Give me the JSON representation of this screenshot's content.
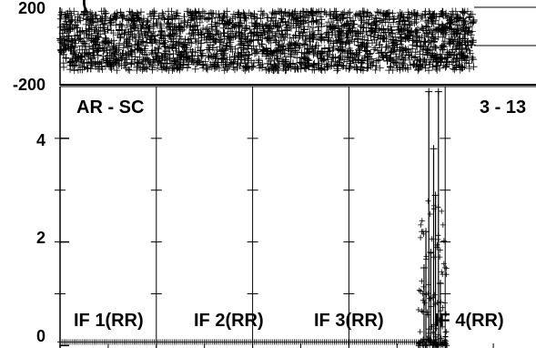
{
  "chart_data": {
    "type": "scatter",
    "top_panel": {
      "title_fragment": "(",
      "y_ticks": [
        {
          "label": "200",
          "value": 200
        },
        {
          "label": "-200",
          "value": -200
        }
      ],
      "ylim": [
        -200,
        200
      ],
      "band_extent_x": [
        0,
        4.3
      ],
      "band_value_range": [
        -130,
        180
      ]
    },
    "bottom_panel": {
      "baseline_name": "AR - SC",
      "antenna_label": "3 - 13",
      "y_ticks": [
        {
          "label": "4",
          "value": 4
        },
        {
          "label": "2",
          "value": 2
        },
        {
          "label": "0",
          "value": 0
        }
      ],
      "ylim": [
        -0.1,
        5.0
      ],
      "xlim": [
        0,
        5
      ],
      "if_labels": [
        "IF 1(RR)",
        "IF 2(RR)",
        "IF 3(RR)",
        "IF 4(RR)"
      ],
      "if_boundaries": [
        1,
        2,
        3,
        4
      ],
      "spike_x": [
        3.78,
        3.8,
        3.83,
        3.85,
        3.88,
        3.9,
        3.93,
        3.95
      ],
      "spike_values": [
        1.5,
        2.2,
        4.9,
        1.8,
        3.8,
        2.9,
        4.9,
        1.2
      ],
      "baseline_value": 0.07
    }
  }
}
